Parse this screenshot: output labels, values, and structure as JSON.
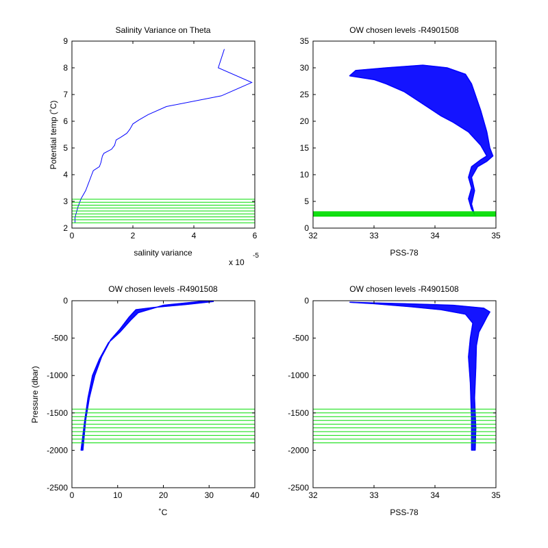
{
  "chart_data": [
    {
      "type": "line",
      "title": "Salinity Variance on Theta",
      "xlabel": "salinity variance",
      "ylabel": "Potential temp (˚C)",
      "xlim": [
        0,
        6
      ],
      "ylim": [
        2,
        9
      ],
      "xticks": [
        "0",
        "2",
        "4",
        "6"
      ],
      "yticks": [
        "2",
        "3",
        "4",
        "5",
        "6",
        "7",
        "8",
        "9"
      ],
      "x_multiplier": {
        "base": "x 10",
        "exponent": "-5"
      },
      "series": [
        {
          "color": "#0000ff",
          "points": [
            [
              0.1,
              2.2
            ],
            [
              0.1,
              2.4
            ],
            [
              0.15,
              2.6
            ],
            [
              0.2,
              2.8
            ],
            [
              0.3,
              3.1
            ],
            [
              0.45,
              3.4
            ],
            [
              0.55,
              3.7
            ],
            [
              0.65,
              4.0
            ],
            [
              0.7,
              4.15
            ],
            [
              0.9,
              4.3
            ],
            [
              0.95,
              4.45
            ],
            [
              1.0,
              4.7
            ],
            [
              1.05,
              4.8
            ],
            [
              1.3,
              4.95
            ],
            [
              1.4,
              5.1
            ],
            [
              1.45,
              5.3
            ],
            [
              1.6,
              5.4
            ],
            [
              1.8,
              5.55
            ],
            [
              1.9,
              5.7
            ],
            [
              2.0,
              5.9
            ],
            [
              2.2,
              6.05
            ],
            [
              2.5,
              6.25
            ],
            [
              3.1,
              6.55
            ],
            [
              4.9,
              6.95
            ],
            [
              5.9,
              7.45
            ],
            [
              4.8,
              8.0
            ],
            [
              5.0,
              8.7
            ]
          ]
        }
      ],
      "chosen_levels": {
        "color": "#00dd00",
        "values": [
          2.2,
          2.31,
          2.42,
          2.53,
          2.64,
          2.75,
          2.86,
          2.97,
          3.08
        ]
      }
    },
    {
      "type": "line",
      "title": "OW chosen levels -R4901508",
      "xlabel": "PSS-78",
      "ylabel": "",
      "xlim": [
        32,
        35
      ],
      "ylim": [
        0,
        35
      ],
      "xticks": [
        "32",
        "33",
        "34",
        "35"
      ],
      "yticks": [
        "0",
        "5",
        "10",
        "15",
        "20",
        "25",
        "30",
        "35"
      ],
      "profile_envelope": {
        "color": "#0000ff",
        "upper": [
          [
            32.6,
            28.5
          ],
          [
            32.7,
            29.5
          ],
          [
            33.2,
            30.0
          ],
          [
            33.8,
            30.5
          ],
          [
            34.2,
            30.0
          ],
          [
            34.5,
            28.8
          ],
          [
            34.6,
            27.0
          ],
          [
            34.75,
            22.0
          ],
          [
            34.85,
            18.0
          ],
          [
            34.9,
            15.0
          ],
          [
            34.95,
            13.5
          ],
          [
            34.85,
            12.5
          ],
          [
            34.7,
            11.5
          ],
          [
            34.6,
            9.5
          ],
          [
            34.65,
            7.0
          ],
          [
            34.6,
            4.5
          ],
          [
            34.65,
            2.5
          ]
        ],
        "lower": [
          [
            34.6,
            3.5
          ],
          [
            34.55,
            5.5
          ],
          [
            34.6,
            7.5
          ],
          [
            34.55,
            9.5
          ],
          [
            34.6,
            11.5
          ],
          [
            34.75,
            12.8
          ],
          [
            34.85,
            13.5
          ],
          [
            34.75,
            15.5
          ],
          [
            34.55,
            18.0
          ],
          [
            34.3,
            19.8
          ],
          [
            34.1,
            21.0
          ],
          [
            33.7,
            24.0
          ],
          [
            33.5,
            25.5
          ],
          [
            33.2,
            27.0
          ],
          [
            33.0,
            27.8
          ],
          [
            32.6,
            28.5
          ]
        ]
      },
      "chosen_levels": {
        "color": "#00dd00",
        "values": [
          2.2,
          2.31,
          2.42,
          2.53,
          2.64,
          2.75,
          2.86,
          2.97,
          3.08
        ]
      }
    },
    {
      "type": "line",
      "title": "OW chosen levels -R4901508",
      "xlabel": "˚C",
      "ylabel": "Pressure (dbar)",
      "xlim": [
        0,
        40
      ],
      "ylim": [
        -2500,
        0
      ],
      "xticks": [
        "0",
        "10",
        "20",
        "30",
        "40"
      ],
      "yticks": [
        "-2500",
        "-2000",
        "-1500",
        "-1000",
        "-500",
        "0"
      ],
      "profile_envelope": {
        "color": "#0000ff",
        "upper": [
          [
            2.4,
            -2000
          ],
          [
            3.0,
            -1600
          ],
          [
            3.8,
            -1300
          ],
          [
            5.0,
            -1000
          ],
          [
            6.5,
            -750
          ],
          [
            8.5,
            -520
          ],
          [
            10.5,
            -380
          ],
          [
            12.5,
            -220
          ],
          [
            14.0,
            -120
          ],
          [
            18.0,
            -90
          ],
          [
            25.0,
            -50
          ],
          [
            31.0,
            -10
          ]
        ],
        "lower": [
          [
            29.0,
            -5
          ],
          [
            20.0,
            -60
          ],
          [
            14.5,
            -160
          ],
          [
            13.0,
            -250
          ],
          [
            10.5,
            -420
          ],
          [
            8.0,
            -560
          ],
          [
            6.0,
            -780
          ],
          [
            4.5,
            -1000
          ],
          [
            3.5,
            -1300
          ],
          [
            2.8,
            -1600
          ],
          [
            2.0,
            -2000
          ]
        ]
      },
      "chosen_levels": {
        "color": "#00dd00",
        "values": [
          -1450,
          -1500,
          -1550,
          -1600,
          -1650,
          -1700,
          -1750,
          -1800,
          -1850,
          -1900
        ]
      }
    },
    {
      "type": "line",
      "title": "OW chosen levels -R4901508",
      "xlabel": "PSS-78",
      "ylabel": "",
      "xlim": [
        32,
        35
      ],
      "ylim": [
        -2500,
        0
      ],
      "xticks": [
        "32",
        "33",
        "34",
        "35"
      ],
      "yticks": [
        "-2500",
        "-2000",
        "-1500",
        "-1000",
        "-500",
        "0"
      ],
      "profile_envelope": {
        "color": "#0000ff",
        "upper": [
          [
            32.6,
            -20
          ],
          [
            33.5,
            -40
          ],
          [
            34.3,
            -60
          ],
          [
            34.8,
            -100
          ],
          [
            34.9,
            -150
          ],
          [
            34.85,
            -220
          ],
          [
            34.8,
            -300
          ],
          [
            34.72,
            -420
          ],
          [
            34.68,
            -600
          ],
          [
            34.67,
            -900
          ],
          [
            34.65,
            -1300
          ],
          [
            34.67,
            -1700
          ],
          [
            34.66,
            -2000
          ]
        ],
        "lower": [
          [
            34.6,
            -2000
          ],
          [
            34.6,
            -1600
          ],
          [
            34.58,
            -1100
          ],
          [
            34.55,
            -750
          ],
          [
            34.58,
            -500
          ],
          [
            34.62,
            -300
          ],
          [
            34.5,
            -180
          ],
          [
            34.1,
            -120
          ],
          [
            33.6,
            -80
          ],
          [
            33.0,
            -40
          ],
          [
            32.6,
            -20
          ]
        ]
      },
      "chosen_levels": {
        "color": "#00dd00",
        "values": [
          -1450,
          -1500,
          -1550,
          -1600,
          -1650,
          -1700,
          -1750,
          -1800,
          -1850,
          -1900
        ]
      }
    }
  ]
}
